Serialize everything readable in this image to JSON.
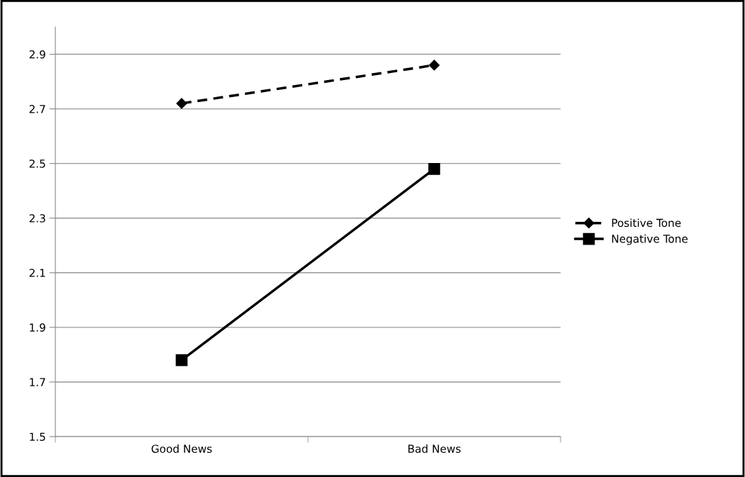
{
  "chart_data": {
    "type": "line",
    "categories": [
      "Good News",
      "Bad News"
    ],
    "series": [
      {
        "name": "Positive Tone",
        "color": "#000000",
        "values": [
          2.72,
          2.86
        ],
        "marker": "diamond",
        "line_style": "dashed"
      },
      {
        "name": "Negative Tone",
        "color": "#000000",
        "values": [
          1.78,
          2.48
        ],
        "marker": "square",
        "line_style": "solid"
      }
    ],
    "ylim": [
      1.5,
      3.0
    ],
    "yticks": [
      1.5,
      1.7,
      1.9,
      2.1,
      2.3,
      2.5,
      2.7,
      2.9
    ],
    "grid": "y",
    "legend": "right"
  }
}
